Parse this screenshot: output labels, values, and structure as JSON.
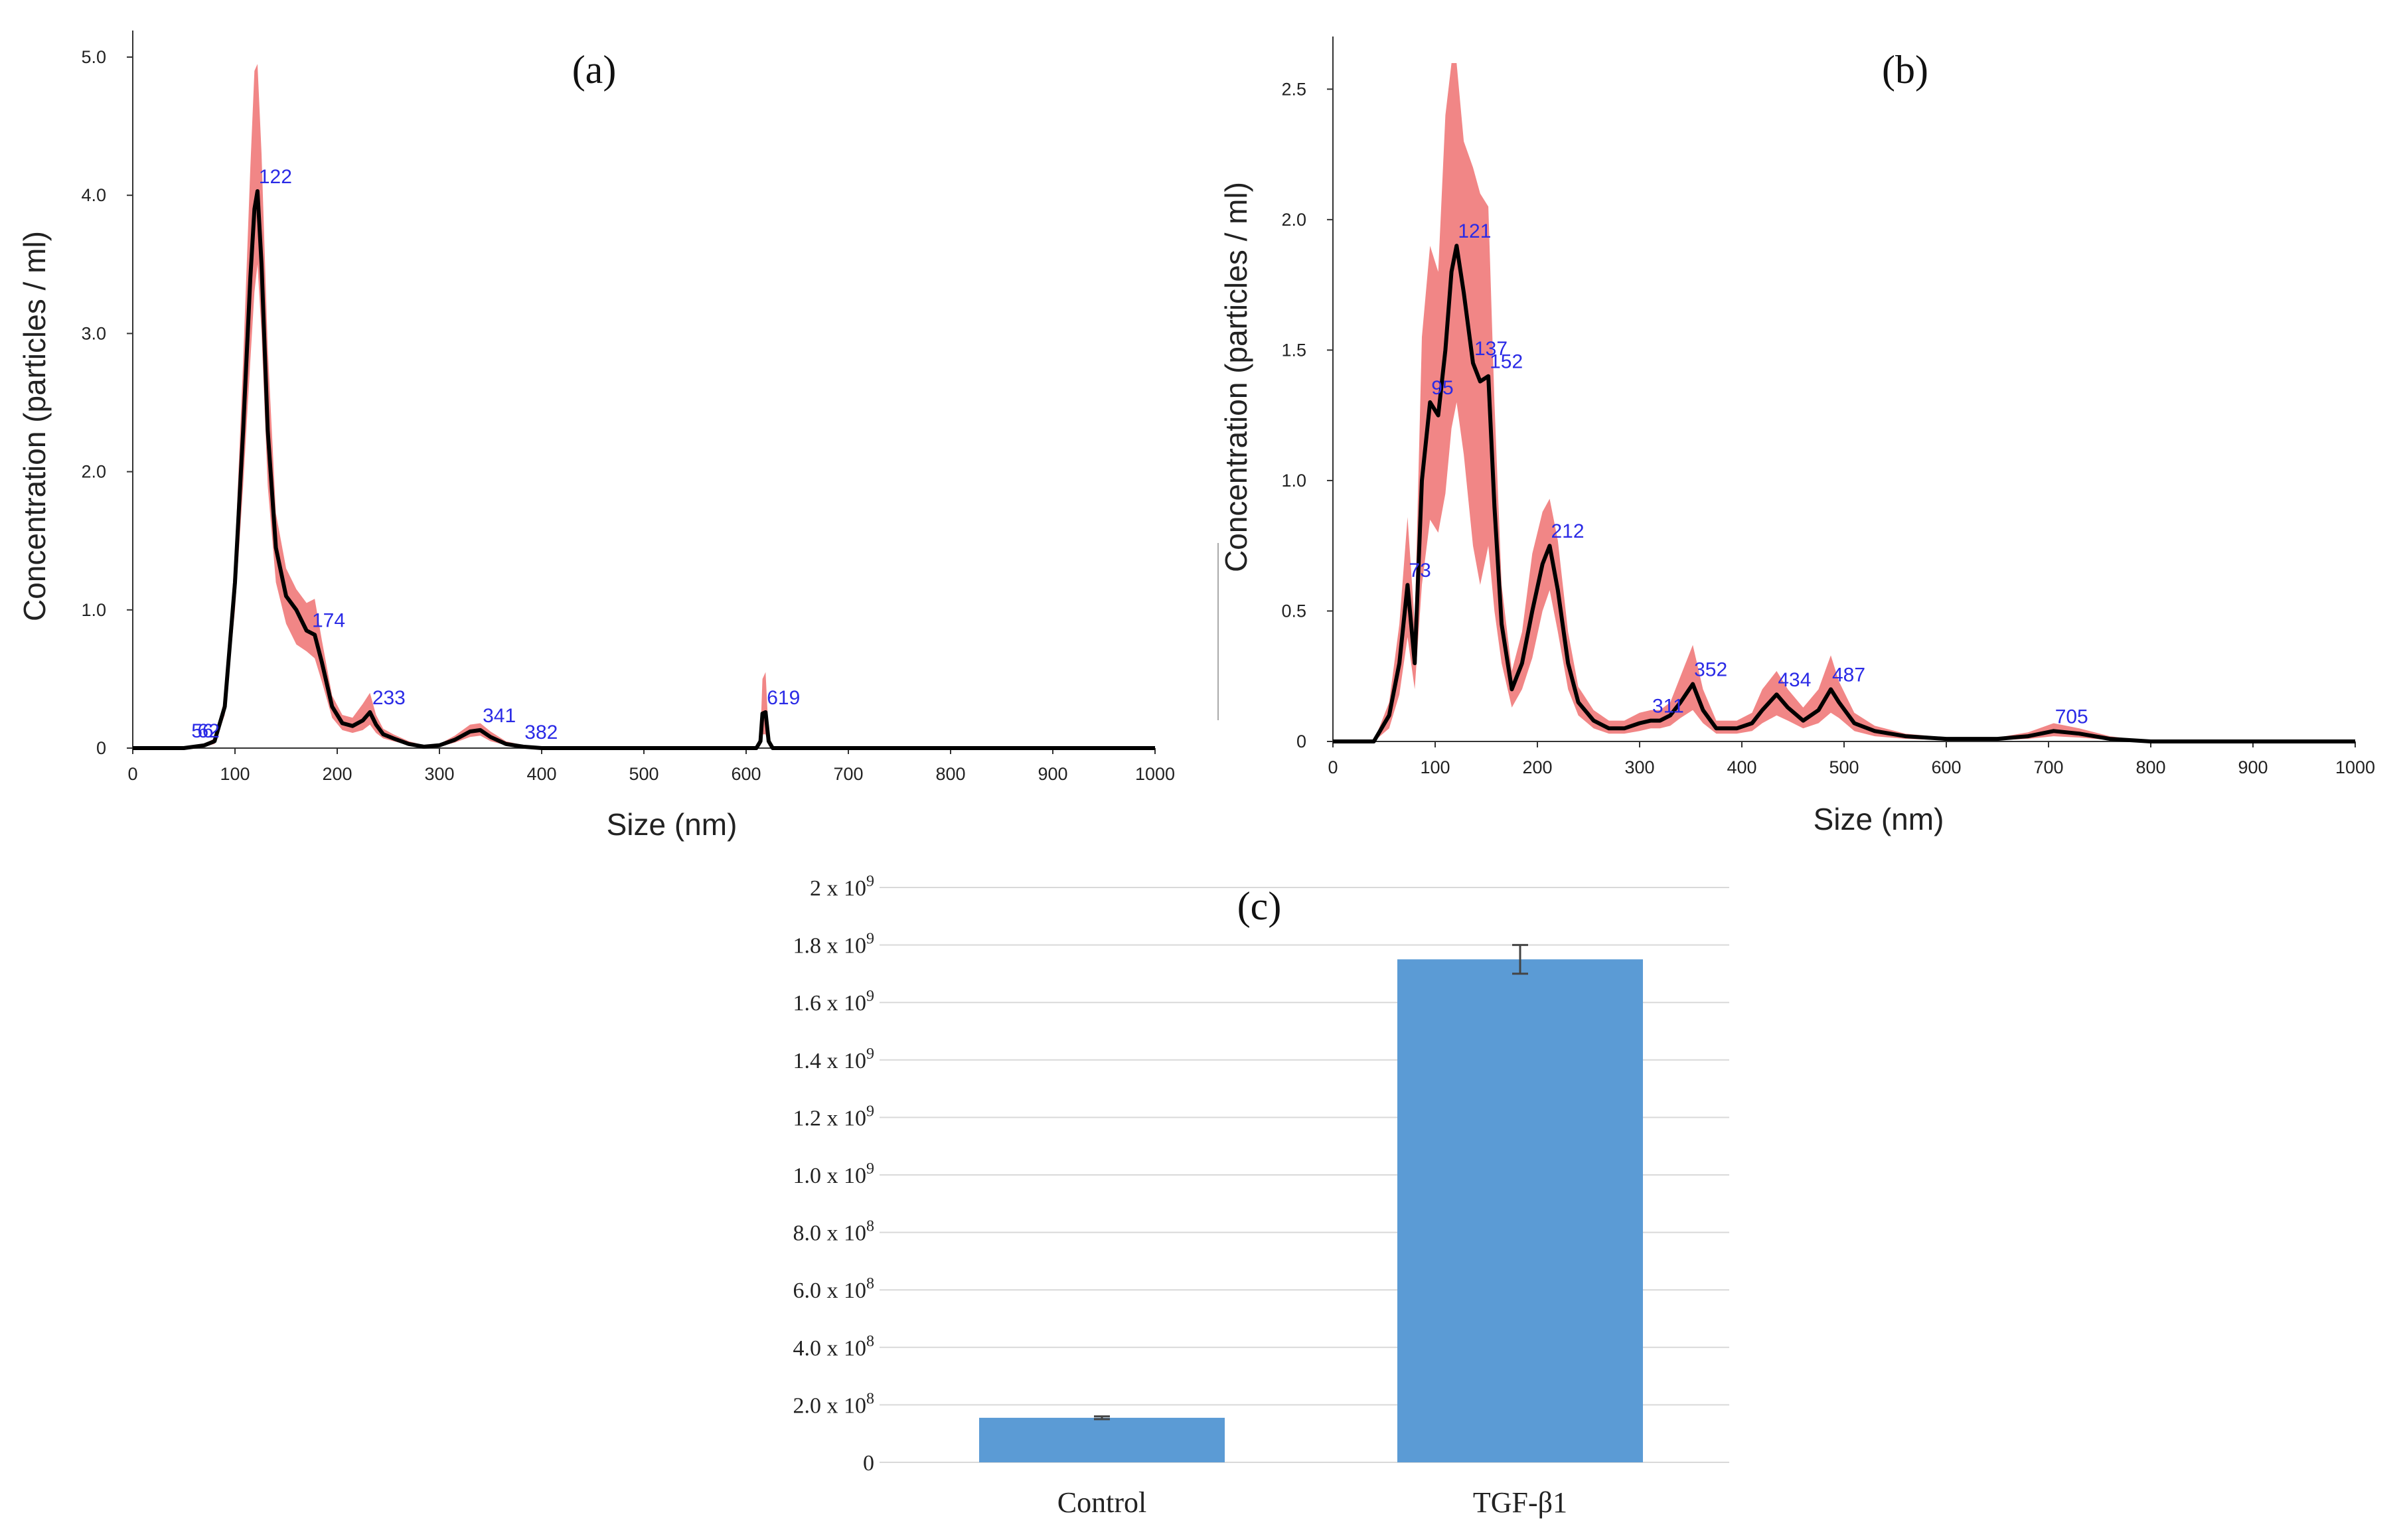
{
  "colors": {
    "curve": "#000000",
    "band": "#f08080",
    "peak_label": "#2a2ae6",
    "bar": "#5b9bd5",
    "grid": "#d9d9d9",
    "axis": "#333333"
  },
  "chart_data": [
    {
      "id": "a",
      "type": "line",
      "title": "(a)",
      "xlabel": "Size (nm)",
      "ylabel": "Concentration (particles / ml)",
      "xlim": [
        0,
        1000
      ],
      "ylim": [
        0,
        5
      ],
      "x_ticks": [
        "0",
        "100",
        "200",
        "300",
        "400",
        "500",
        "600",
        "700",
        "800",
        "900",
        "1000"
      ],
      "y_ticks": [
        "0",
        "1.0",
        "2.0",
        "3.0",
        "4.0",
        "5.0"
      ],
      "series": [
        {
          "name": "mean",
          "x": [
            0,
            50,
            70,
            80,
            90,
            100,
            108,
            115,
            119,
            122,
            126,
            132,
            140,
            150,
            160,
            170,
            178,
            185,
            195,
            205,
            215,
            225,
            232,
            238,
            245,
            255,
            270,
            285,
            300,
            315,
            330,
            340,
            350,
            365,
            382,
            400,
            450,
            500,
            550,
            600,
            610,
            614,
            616,
            619,
            622,
            626,
            630,
            700,
            800,
            900,
            1000
          ],
          "y": [
            0,
            0,
            0.02,
            0.05,
            0.3,
            1.2,
            2.3,
            3.4,
            3.9,
            4.03,
            3.5,
            2.3,
            1.45,
            1.1,
            1.0,
            0.85,
            0.82,
            0.62,
            0.3,
            0.18,
            0.16,
            0.2,
            0.26,
            0.17,
            0.1,
            0.07,
            0.03,
            0.01,
            0.02,
            0.06,
            0.12,
            0.13,
            0.08,
            0.03,
            0.01,
            0,
            0,
            0,
            0,
            0,
            0,
            0.05,
            0.25,
            0.26,
            0.05,
            0,
            0,
            0,
            0,
            0,
            0
          ]
        },
        {
          "name": "upper",
          "x": [
            0,
            50,
            70,
            80,
            90,
            100,
            108,
            115,
            119,
            122,
            126,
            132,
            140,
            150,
            160,
            170,
            178,
            185,
            195,
            205,
            215,
            225,
            232,
            238,
            245,
            255,
            270,
            285,
            300,
            315,
            330,
            340,
            350,
            365,
            382,
            400,
            450,
            500,
            550,
            600,
            610,
            614,
            616,
            619,
            622,
            626,
            630,
            700,
            800,
            900,
            1000
          ],
          "y": [
            0,
            0,
            0.03,
            0.07,
            0.36,
            1.4,
            2.8,
            4.2,
            4.9,
            4.95,
            4.3,
            2.9,
            1.7,
            1.3,
            1.15,
            1.05,
            1.08,
            0.78,
            0.38,
            0.24,
            0.22,
            0.32,
            0.4,
            0.24,
            0.14,
            0.1,
            0.05,
            0.02,
            0.03,
            0.09,
            0.17,
            0.18,
            0.12,
            0.05,
            0.02,
            0,
            0,
            0,
            0,
            0,
            0,
            0.1,
            0.5,
            0.55,
            0.1,
            0,
            0,
            0,
            0,
            0,
            0
          ]
        },
        {
          "name": "lower",
          "x": [
            0,
            50,
            70,
            80,
            90,
            100,
            108,
            115,
            119,
            122,
            126,
            132,
            140,
            150,
            160,
            170,
            178,
            185,
            195,
            205,
            215,
            225,
            232,
            238,
            245,
            255,
            270,
            285,
            300,
            315,
            330,
            340,
            350,
            365,
            382,
            400,
            450,
            500,
            550,
            600,
            610,
            614,
            616,
            619,
            622,
            626,
            630,
            700,
            800,
            900,
            1000
          ],
          "y": [
            0,
            0,
            0.01,
            0.03,
            0.24,
            1.0,
            1.9,
            2.8,
            3.3,
            3.5,
            3.0,
            1.9,
            1.2,
            0.9,
            0.75,
            0.7,
            0.65,
            0.48,
            0.22,
            0.13,
            0.11,
            0.13,
            0.17,
            0.11,
            0.07,
            0.05,
            0.02,
            0.005,
            0.01,
            0.04,
            0.08,
            0.09,
            0.05,
            0.02,
            0.005,
            0,
            0,
            0,
            0,
            0,
            0,
            0.02,
            0.1,
            0.1,
            0.02,
            0,
            0,
            0,
            0,
            0,
            0
          ]
        }
      ],
      "peak_labels": [
        {
          "x": 56,
          "y": 0.02,
          "text": "56"
        },
        {
          "x": 62,
          "y": 0.02,
          "text": "62"
        },
        {
          "x": 122,
          "y": 4.03,
          "text": "122"
        },
        {
          "x": 174,
          "y": 0.82,
          "text": "174"
        },
        {
          "x": 233,
          "y": 0.26,
          "text": "233"
        },
        {
          "x": 341,
          "y": 0.13,
          "text": "341"
        },
        {
          "x": 382,
          "y": 0.01,
          "text": "382"
        },
        {
          "x": 619,
          "y": 0.26,
          "text": "619"
        }
      ]
    },
    {
      "id": "b",
      "type": "line",
      "title": "(b)",
      "xlabel": "Size (nm)",
      "ylabel": "Concentration (particles / ml)",
      "xlim": [
        0,
        1000
      ],
      "ylim": [
        0,
        2.6
      ],
      "x_ticks": [
        "0",
        "100",
        "200",
        "300",
        "400",
        "500",
        "600",
        "700",
        "800",
        "900",
        "1000"
      ],
      "y_ticks": [
        "0",
        "0.5",
        "1.0",
        "1.5",
        "2.0",
        "2.5"
      ],
      "y_tick_values": [
        0,
        0.5,
        1.0,
        1.5,
        2.0,
        2.5
      ],
      "series": [
        {
          "name": "mean",
          "x": [
            0,
            40,
            55,
            65,
            73,
            80,
            87,
            95,
            103,
            110,
            116,
            121,
            128,
            137,
            144,
            152,
            158,
            165,
            175,
            185,
            195,
            205,
            212,
            220,
            230,
            240,
            255,
            270,
            285,
            300,
            311,
            320,
            330,
            340,
            352,
            362,
            375,
            395,
            410,
            420,
            434,
            445,
            460,
            475,
            487,
            495,
            510,
            530,
            560,
            600,
            650,
            680,
            705,
            730,
            760,
            800,
            900,
            1000
          ],
          "y": [
            0,
            0,
            0.1,
            0.3,
            0.6,
            0.3,
            1.0,
            1.3,
            1.25,
            1.5,
            1.8,
            1.9,
            1.72,
            1.45,
            1.38,
            1.4,
            0.9,
            0.45,
            0.2,
            0.3,
            0.5,
            0.68,
            0.75,
            0.58,
            0.3,
            0.15,
            0.08,
            0.05,
            0.05,
            0.07,
            0.08,
            0.08,
            0.1,
            0.15,
            0.22,
            0.12,
            0.05,
            0.05,
            0.07,
            0.12,
            0.18,
            0.13,
            0.08,
            0.12,
            0.2,
            0.15,
            0.07,
            0.04,
            0.02,
            0.01,
            0.01,
            0.02,
            0.04,
            0.03,
            0.01,
            0,
            0,
            0
          ]
        },
        {
          "name": "upper",
          "x": [
            0,
            40,
            55,
            65,
            73,
            80,
            87,
            95,
            103,
            110,
            116,
            121,
            128,
            137,
            144,
            152,
            158,
            165,
            175,
            185,
            195,
            205,
            212,
            220,
            230,
            240,
            255,
            270,
            285,
            300,
            311,
            320,
            330,
            340,
            352,
            362,
            375,
            395,
            410,
            420,
            434,
            445,
            460,
            475,
            487,
            495,
            510,
            530,
            560,
            600,
            650,
            680,
            705,
            730,
            760,
            800,
            900,
            1000
          ],
          "y": [
            0,
            0,
            0.15,
            0.45,
            0.86,
            0.45,
            1.55,
            1.9,
            1.8,
            2.4,
            2.6,
            2.6,
            2.3,
            2.2,
            2.1,
            2.05,
            1.3,
            0.6,
            0.27,
            0.42,
            0.72,
            0.88,
            0.93,
            0.77,
            0.42,
            0.21,
            0.12,
            0.08,
            0.08,
            0.11,
            0.12,
            0.12,
            0.15,
            0.25,
            0.37,
            0.2,
            0.08,
            0.08,
            0.11,
            0.2,
            0.27,
            0.2,
            0.13,
            0.2,
            0.33,
            0.23,
            0.11,
            0.06,
            0.03,
            0.015,
            0.015,
            0.035,
            0.07,
            0.05,
            0.02,
            0,
            0,
            0
          ]
        },
        {
          "name": "lower",
          "x": [
            0,
            40,
            55,
            65,
            73,
            80,
            87,
            95,
            103,
            110,
            116,
            121,
            128,
            137,
            144,
            152,
            158,
            165,
            175,
            185,
            195,
            205,
            212,
            220,
            230,
            240,
            255,
            270,
            285,
            300,
            311,
            320,
            330,
            340,
            352,
            362,
            375,
            395,
            410,
            420,
            434,
            445,
            460,
            475,
            487,
            495,
            510,
            530,
            560,
            600,
            650,
            680,
            705,
            730,
            760,
            800,
            900,
            1000
          ],
          "y": [
            0,
            0,
            0.05,
            0.18,
            0.4,
            0.2,
            0.6,
            0.85,
            0.8,
            0.95,
            1.2,
            1.3,
            1.1,
            0.75,
            0.6,
            0.75,
            0.5,
            0.3,
            0.13,
            0.2,
            0.32,
            0.5,
            0.58,
            0.42,
            0.2,
            0.1,
            0.05,
            0.03,
            0.03,
            0.04,
            0.05,
            0.05,
            0.06,
            0.09,
            0.12,
            0.07,
            0.03,
            0.03,
            0.04,
            0.07,
            0.1,
            0.08,
            0.05,
            0.07,
            0.11,
            0.09,
            0.04,
            0.02,
            0.01,
            0.005,
            0.005,
            0.01,
            0.02,
            0.015,
            0.005,
            0,
            0,
            0
          ]
        }
      ],
      "peak_labels": [
        {
          "x": 73,
          "y": 0.6,
          "text": "73"
        },
        {
          "x": 95,
          "y": 1.3,
          "text": "95"
        },
        {
          "x": 121,
          "y": 1.9,
          "text": "121"
        },
        {
          "x": 137,
          "y": 1.45,
          "text": "137"
        },
        {
          "x": 152,
          "y": 1.4,
          "text": "152"
        },
        {
          "x": 212,
          "y": 0.75,
          "text": "212"
        },
        {
          "x": 311,
          "y": 0.08,
          "text": "311"
        },
        {
          "x": 352,
          "y": 0.22,
          "text": "352"
        },
        {
          "x": 434,
          "y": 0.18,
          "text": "434"
        },
        {
          "x": 487,
          "y": 0.2,
          "text": "487"
        },
        {
          "x": 705,
          "y": 0.04,
          "text": "705"
        }
      ]
    },
    {
      "id": "c",
      "type": "bar",
      "title": "(c)",
      "categories": [
        "Control",
        "TGF-β1"
      ],
      "values": [
        155000000,
        1750000000
      ],
      "errors": [
        5000000,
        50000000
      ],
      "ylim": [
        0,
        2000000000
      ],
      "y_tick_values": [
        0,
        200000000,
        400000000,
        600000000,
        800000000,
        1000000000,
        1200000000,
        1400000000,
        1600000000,
        1800000000,
        2000000000
      ],
      "y_tick_mantissas": [
        "0",
        "2.0 x 10",
        "4.0 x 10",
        "6.0 x 10",
        "8.0 x 10",
        "1.0 x 10",
        "1.2 x 10",
        "1.4 x 10",
        "1.6 x 10",
        "1.8 x 10",
        "2 x 10"
      ],
      "y_tick_exponents": [
        "",
        "8",
        "8",
        "8",
        "8",
        "9",
        "9",
        "9",
        "9",
        "9",
        "9"
      ]
    }
  ]
}
